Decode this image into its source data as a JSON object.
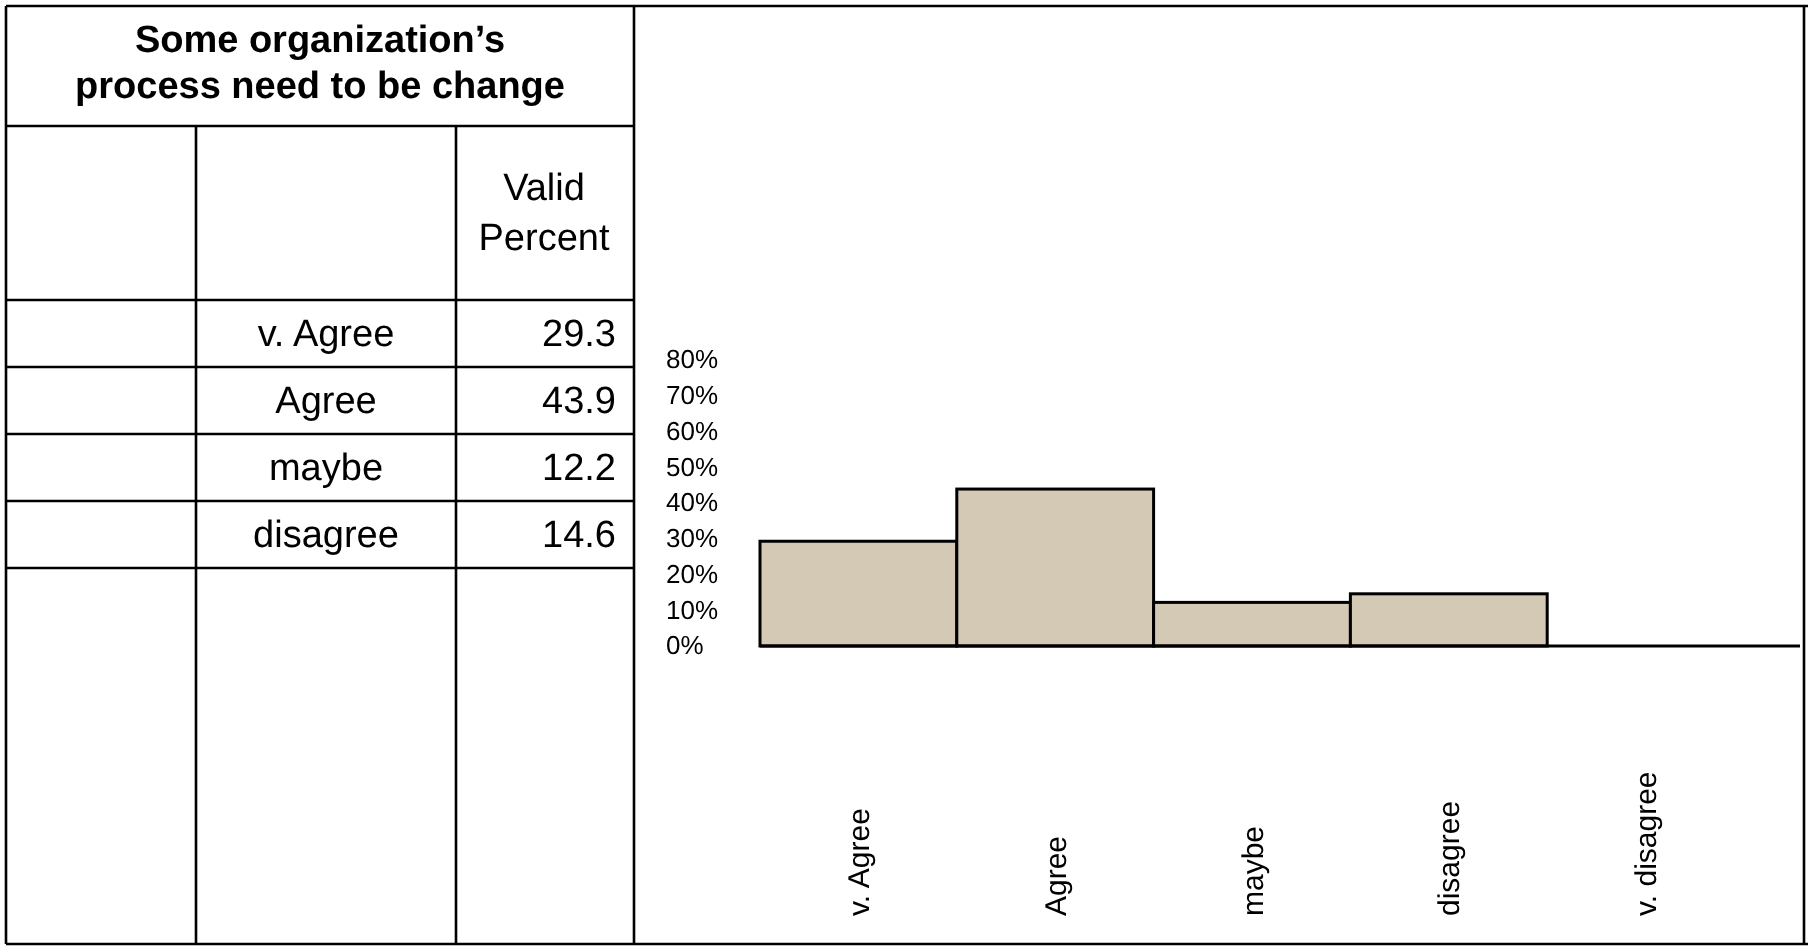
{
  "chart_data": [
    {
      "type": "other",
      "title": "Some organization’s process need to be change",
      "annotations": [
        "Valid Percent",
        "v. Agree",
        "29.3",
        "Agree",
        "43.9",
        "maybe",
        "12.2",
        "disagree",
        "14.6"
      ]
    },
    {
      "type": "bar",
      "categories": [
        "v. Agree",
        "Agree",
        "maybe",
        "disagree",
        "v. disagree"
      ],
      "values": [
        29.3,
        43.9,
        12.2,
        14.6,
        0
      ],
      "color": "#d4c9b4",
      "ylim": [
        0,
        80
      ],
      "yticks": [
        {
          "value": 0,
          "label": "0%"
        },
        {
          "value": 10,
          "label": "10%"
        },
        {
          "value": 20,
          "label": "20%"
        },
        {
          "value": 30,
          "label": "30%"
        },
        {
          "value": 40,
          "label": "40%"
        },
        {
          "value": 50,
          "label": "50%"
        },
        {
          "value": 60,
          "label": "60%"
        },
        {
          "value": 70,
          "label": "70%"
        },
        {
          "value": 80,
          "label": "80%"
        }
      ]
    }
  ]
}
